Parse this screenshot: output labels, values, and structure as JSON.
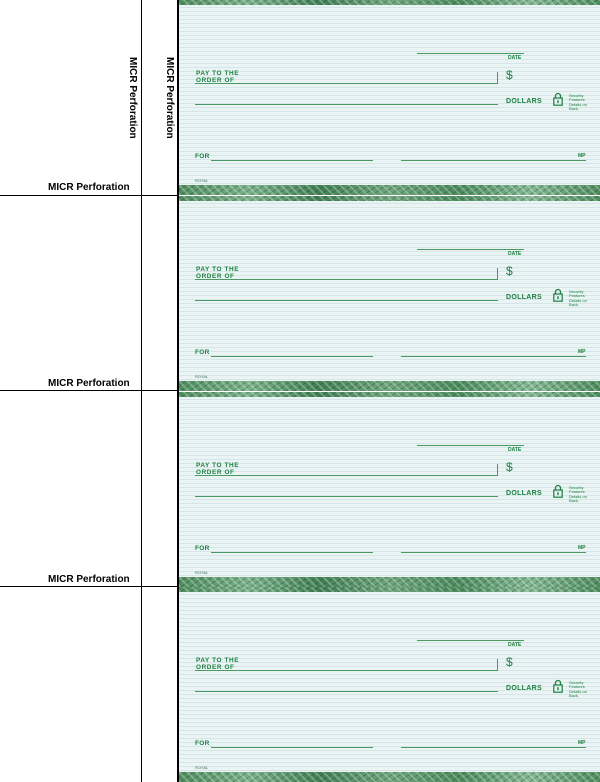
{
  "stub": {
    "micr_vertical_1": "MICR Perforation",
    "micr_vertical_2": "MICR Perforation",
    "micr_bottom_labels": [
      "MICR Perforation",
      "MICR Perforation",
      "MICR Perforation"
    ]
  },
  "check": {
    "date_label": "DATE",
    "pay_line1": "PAY TO THE",
    "pay_line2": "ORDER OF",
    "dollar_sign": "$",
    "dollars_label": "DOLLARS",
    "security_text": "Security Features Details on Back.",
    "for_label": "FOR",
    "mp_label": "MP",
    "maker_text": "ROYAL"
  },
  "colors": {
    "check_green": "#1c8040",
    "check_background": "#eaf4f5",
    "border": "#000000"
  },
  "icons": [
    "padlock-icon"
  ]
}
